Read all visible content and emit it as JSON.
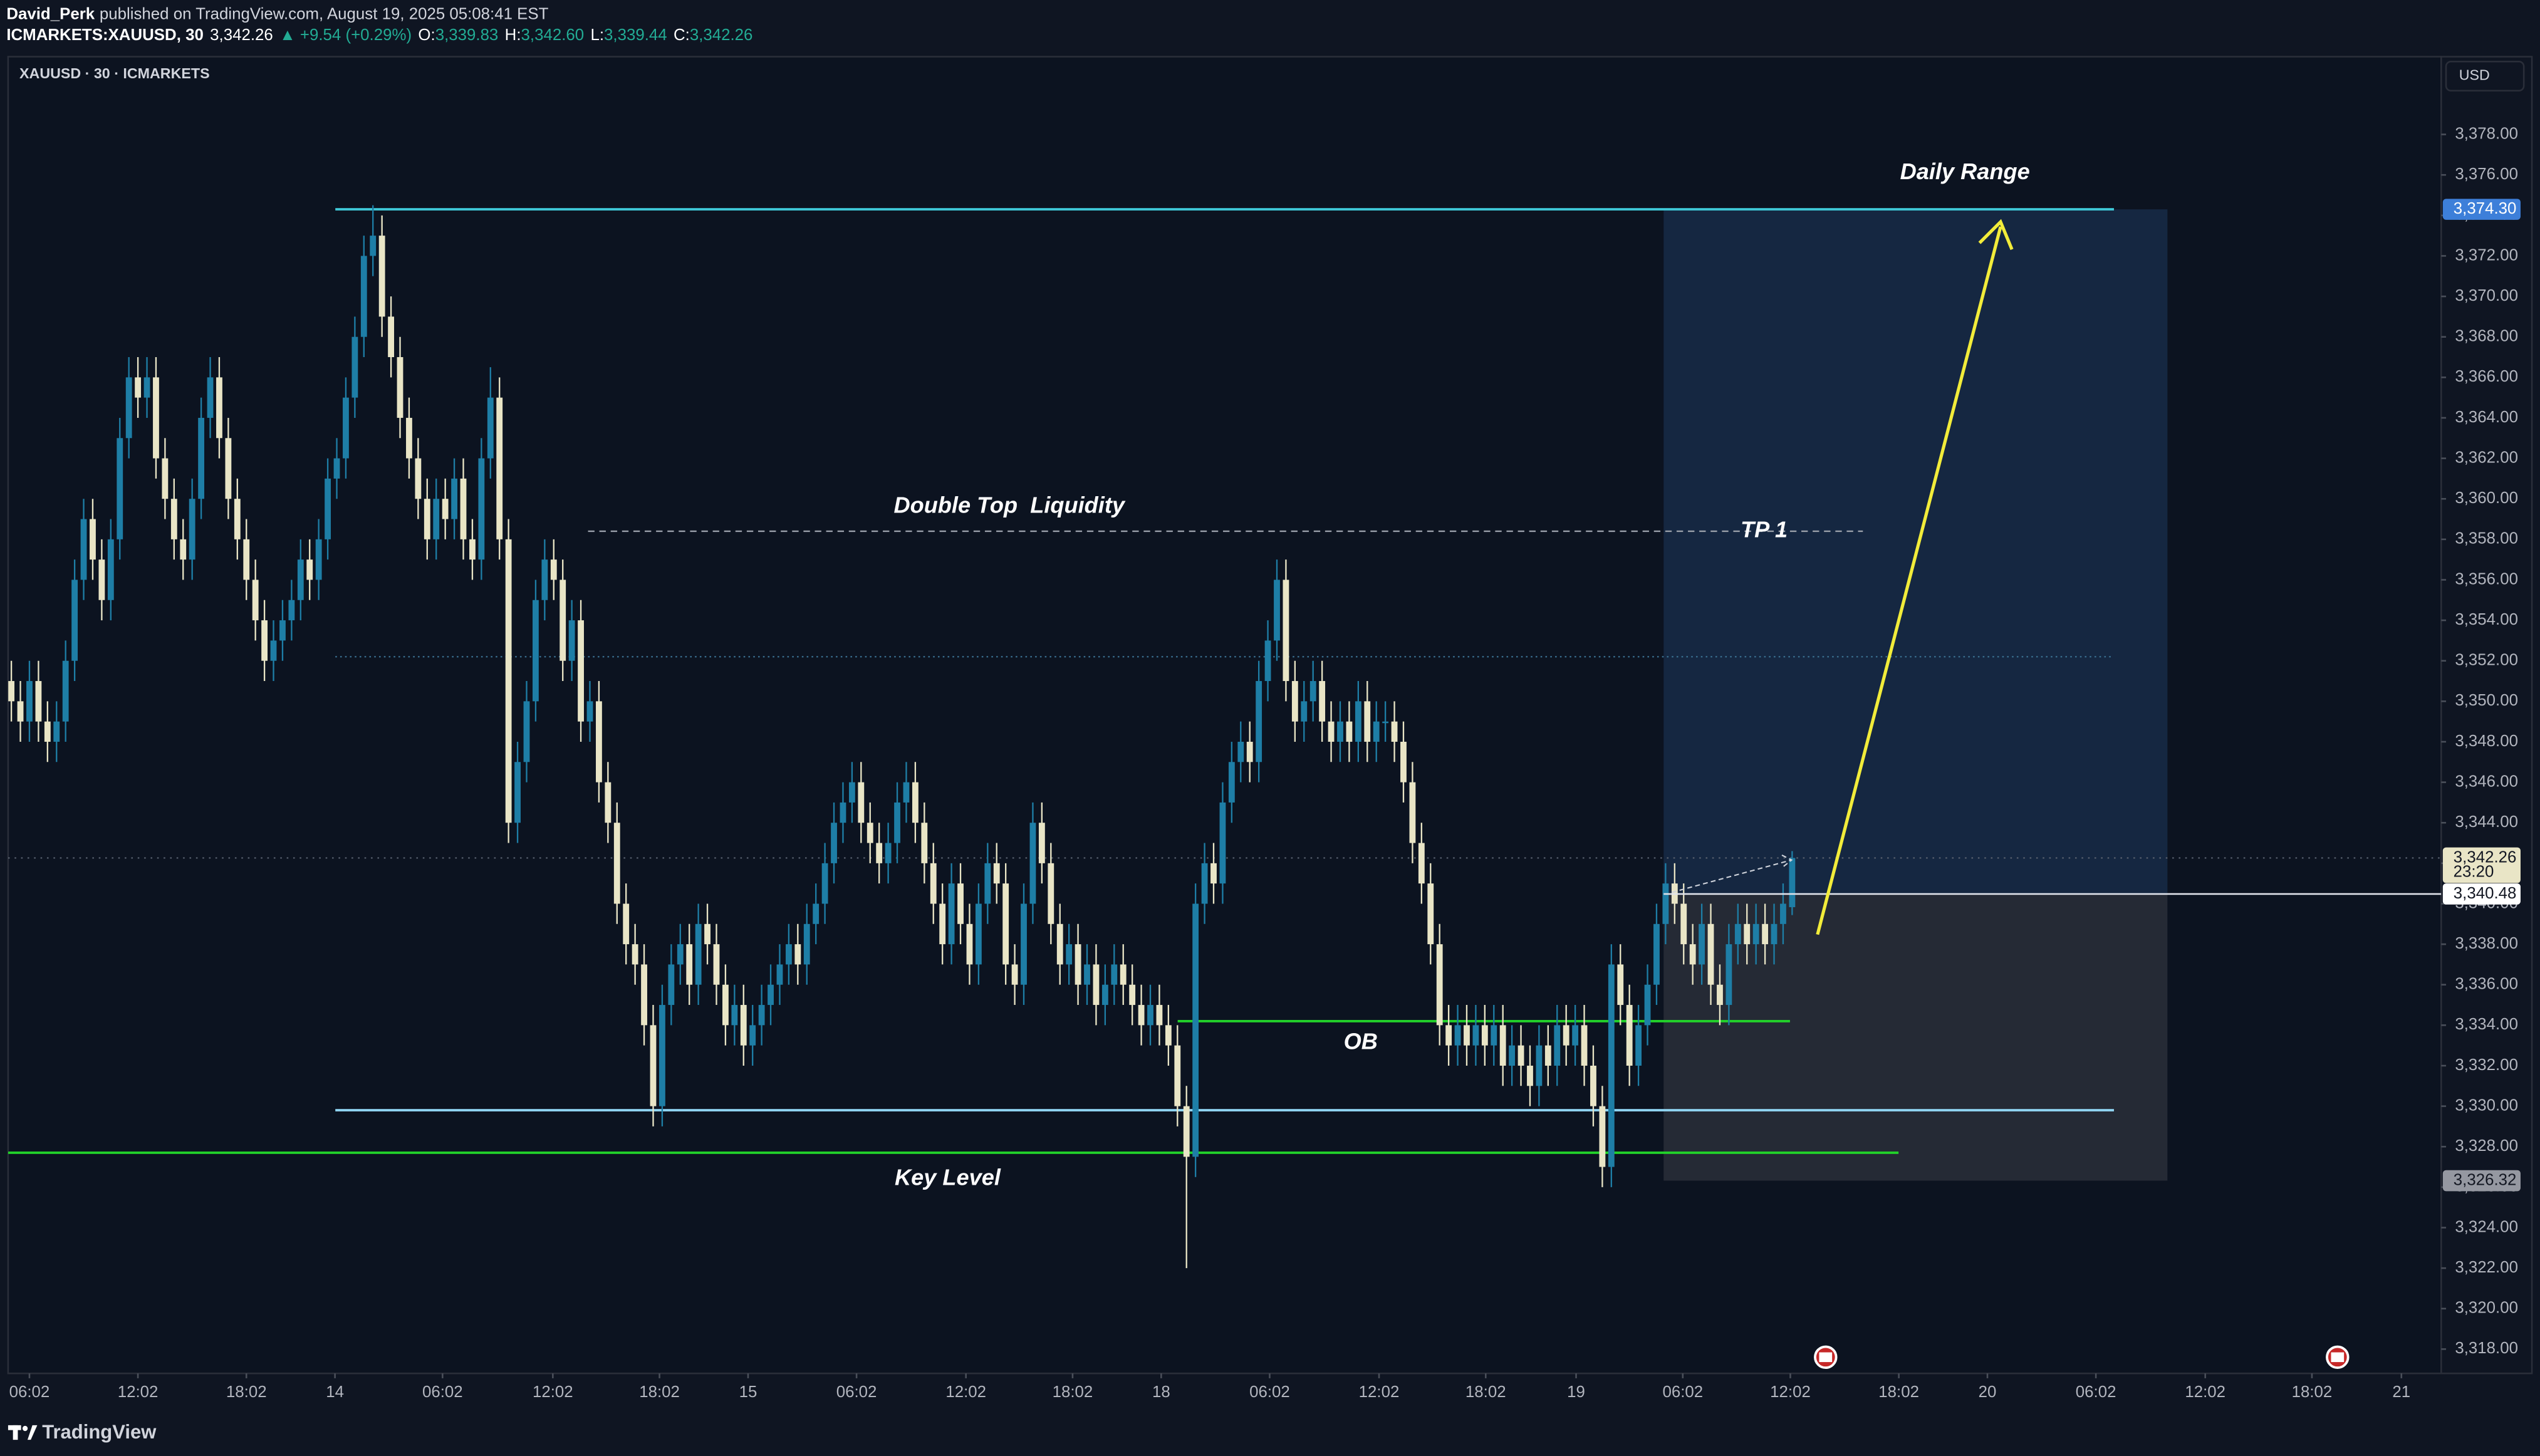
{
  "header": {
    "author": "David_Perk",
    "published": "published on TradingView.com, August 19, 2025 05:08:41 EST",
    "symbol": "ICMARKETS:XAUUSD, 30",
    "last": "3,342.26",
    "change": "▲ +9.54 (+0.29%)",
    "ohlc": [
      {
        "label": "O:",
        "value": "3,339.83"
      },
      {
        "label": "H:",
        "value": "3,342.60"
      },
      {
        "label": "L:",
        "value": "3,339.44"
      },
      {
        "label": "C:",
        "value": "3,342.26"
      }
    ]
  },
  "footer": {
    "brand": "TradingView"
  },
  "chart_data": {
    "type": "candlestick",
    "legend": "XAUUSD · 30 · ICMARKETS",
    "currency": "USD",
    "up_color": "#1e7ea6",
    "down_color": "#e9e5c6",
    "xlim": [
      -0.36,
      268.8
    ],
    "ylim": [
      3316.8,
      3381.84
    ],
    "xticks": [
      {
        "value": 2,
        "label": "06:02"
      },
      {
        "value": 14,
        "label": "12:02"
      },
      {
        "value": 26,
        "label": "18:02"
      },
      {
        "value": 35.8,
        "label": "14"
      },
      {
        "value": 47.7,
        "label": "06:02"
      },
      {
        "value": 59.9,
        "label": "12:02"
      },
      {
        "value": 71.7,
        "label": "18:02"
      },
      {
        "value": 81.5,
        "label": "15"
      },
      {
        "value": 93.5,
        "label": "06:02"
      },
      {
        "value": 105.6,
        "label": "12:02"
      },
      {
        "value": 117.4,
        "label": "18:02"
      },
      {
        "value": 127.2,
        "label": "18"
      },
      {
        "value": 139.2,
        "label": "06:02"
      },
      {
        "value": 151.3,
        "label": "12:02"
      },
      {
        "value": 163.1,
        "label": "18:02"
      },
      {
        "value": 173.1,
        "label": "19"
      },
      {
        "value": 184.9,
        "label": "06:02"
      },
      {
        "value": 196.8,
        "label": "12:02"
      },
      {
        "value": 208.8,
        "label": "18:02"
      },
      {
        "value": 218.6,
        "label": "20"
      },
      {
        "value": 230.6,
        "label": "06:02"
      },
      {
        "value": 242.7,
        "label": "12:02"
      },
      {
        "value": 254.5,
        "label": "18:02"
      },
      {
        "value": 264.4,
        "label": "21"
      }
    ],
    "yticks": [
      {
        "value": 3318,
        "label": "3,318.00"
      },
      {
        "value": 3320,
        "label": "3,320.00"
      },
      {
        "value": 3322,
        "label": "3,322.00"
      },
      {
        "value": 3324,
        "label": "3,324.00"
      },
      {
        "value": 3326,
        "label": "3,326.00"
      },
      {
        "value": 3328,
        "label": "3,328.00"
      },
      {
        "value": 3330,
        "label": "3,330.00"
      },
      {
        "value": 3332,
        "label": "3,332.00"
      },
      {
        "value": 3334,
        "label": "3,334.00"
      },
      {
        "value": 3336,
        "label": "3,336.00"
      },
      {
        "value": 3338,
        "label": "3,338.00"
      },
      {
        "value": 3340,
        "label": "3,340.00"
      },
      {
        "value": 3342,
        "label": "3,342.00"
      },
      {
        "value": 3344,
        "label": "3,344.00"
      },
      {
        "value": 3346,
        "label": "3,346.00"
      },
      {
        "value": 3348,
        "label": "3,348.00"
      },
      {
        "value": 3350,
        "label": "3,350.00"
      },
      {
        "value": 3352,
        "label": "3,352.00"
      },
      {
        "value": 3354,
        "label": "3,354.00"
      },
      {
        "value": 3356,
        "label": "3,356.00"
      },
      {
        "value": 3358,
        "label": "3,358.00"
      },
      {
        "value": 3360,
        "label": "3,360.00"
      },
      {
        "value": 3362,
        "label": "3,362.00"
      },
      {
        "value": 3364,
        "label": "3,364.00"
      },
      {
        "value": 3366,
        "label": "3,366.00"
      },
      {
        "value": 3368,
        "label": "3,368.00"
      },
      {
        "value": 3370,
        "label": "3,370.00"
      },
      {
        "value": 3372,
        "label": "3,372.00"
      },
      {
        "value": 3374,
        "label": "3,374.00"
      },
      {
        "value": 3376,
        "label": "3,376.00"
      },
      {
        "value": 3378,
        "label": "3,378.00"
      }
    ],
    "series": [
      {
        "open": [
          3351,
          3350,
          3349,
          3351,
          3349,
          3348,
          3349,
          3352,
          3356,
          3359,
          3357,
          3355,
          3358,
          3363,
          3366,
          3365,
          3366,
          3362,
          3360,
          3358,
          3357,
          3360,
          3364,
          3366,
          3363,
          3360,
          3358,
          3356,
          3354,
          3352,
          3353,
          3354,
          3355,
          3357,
          3356,
          3358,
          3361,
          3362,
          3365,
          3368,
          3372,
          3373,
          3369,
          3367,
          3364,
          3362,
          3360,
          3358,
          3360,
          3359,
          3361,
          3358,
          3357,
          3362,
          3365,
          3358,
          3344,
          3347,
          3350,
          3355,
          3357,
          3356,
          3352,
          3354,
          3349,
          3350,
          3346,
          3344,
          3340,
          3338,
          3337,
          3334,
          3330,
          3335,
          3337,
          3338,
          3336,
          3339,
          3338,
          3336,
          3334,
          3335,
          3333,
          3334,
          3335,
          3336,
          3337,
          3338,
          3337,
          3339,
          3340,
          3342,
          3344,
          3345,
          3346,
          3344,
          3343,
          3342,
          3343,
          3345,
          3346,
          3344,
          3342,
          3340,
          3338,
          3341,
          3339,
          3337,
          3340,
          3342,
          3341,
          3337,
          3336,
          3340,
          3344,
          3342,
          3339,
          3337,
          3338,
          3336,
          3337,
          3335,
          3336,
          3337,
          3336,
          3335,
          3334,
          3335,
          3334,
          3333,
          3330,
          3327.5,
          3340,
          3342,
          3341,
          3345,
          3347,
          3348,
          3347,
          3351,
          3353,
          3356,
          3351,
          3349,
          3350,
          3351,
          3349,
          3348,
          3349,
          3348,
          3350,
          3348,
          3349,
          3349,
          3348,
          3346,
          3343,
          3341,
          3338,
          3334,
          3333,
          3334,
          3333,
          3334,
          3333,
          3334,
          3332,
          3333,
          3332,
          3331,
          3333,
          3332,
          3334,
          3333,
          3334,
          3332,
          3330,
          3327,
          3337,
          3335,
          3332,
          3334,
          3336,
          3339,
          3341,
          3340,
          3338,
          3337,
          3339,
          3336,
          3335,
          3338,
          3339,
          3338,
          3339,
          3338,
          3339,
          3339.83
        ],
        "high": [
          3352,
          3351,
          3352,
          3352,
          3350,
          3350,
          3353,
          3357,
          3360,
          3360,
          3358,
          3359,
          3364,
          3367,
          3367,
          3367,
          3367,
          3363,
          3361,
          3359,
          3361,
          3365,
          3367,
          3367,
          3364,
          3361,
          3359,
          3357,
          3355,
          3354,
          3355,
          3356,
          3358,
          3358,
          3359,
          3362,
          3363,
          3366,
          3369,
          3373,
          3374.5,
          3374,
          3370,
          3368,
          3365,
          3363,
          3361,
          3361,
          3361,
          3362,
          3362,
          3359,
          3363,
          3366.5,
          3366,
          3359,
          3348,
          3351,
          3356,
          3358,
          3358,
          3357,
          3355,
          3355,
          3351,
          3351,
          3347,
          3345,
          3341,
          3339,
          3338,
          3335,
          3336,
          3338,
          3339,
          3339,
          3340,
          3340,
          3339,
          3337,
          3336,
          3336,
          3335,
          3336,
          3337,
          3338,
          3339,
          3339,
          3340,
          3341,
          3343,
          3345,
          3346,
          3347,
          3347,
          3345,
          3344,
          3344,
          3346,
          3347,
          3347,
          3345,
          3343,
          3341,
          3342,
          3342,
          3340,
          3341,
          3343,
          3343,
          3342,
          3338,
          3341,
          3345,
          3345,
          3343,
          3340,
          3339,
          3339,
          3338,
          3338,
          3337,
          3338,
          3338,
          3337,
          3336,
          3336,
          3336,
          3335,
          3334,
          3331,
          3341,
          3343,
          3343,
          3346,
          3348,
          3349,
          3349,
          3352,
          3354,
          3357,
          3357,
          3352,
          3351,
          3352,
          3352,
          3350,
          3350,
          3350,
          3351,
          3351,
          3350,
          3350,
          3350,
          3349,
          3347,
          3344,
          3342,
          3339,
          3335,
          3335,
          3335,
          3335,
          3335,
          3335,
          3335,
          3334,
          3334,
          3333,
          3334,
          3334,
          3335,
          3335,
          3335,
          3335,
          3333,
          3331,
          3338,
          3338,
          3336,
          3335,
          3337,
          3340,
          3342,
          3342,
          3341,
          3339,
          3340,
          3340,
          3337,
          3339,
          3340,
          3340,
          3340,
          3340,
          3340,
          3341,
          3342.6
        ],
        "low": [
          3349,
          3348,
          3348,
          3348,
          3347,
          3347,
          3348,
          3351,
          3355,
          3356,
          3354,
          3354,
          3357,
          3362,
          3364,
          3364,
          3361,
          3359,
          3357,
          3356,
          3356,
          3359,
          3363,
          3362,
          3359,
          3357,
          3355,
          3353,
          3351,
          3351,
          3352,
          3353,
          3354,
          3355,
          3355,
          3357,
          3360,
          3361,
          3364,
          3367,
          3371,
          3368,
          3366,
          3363,
          3361,
          3359,
          3357,
          3357,
          3358,
          3358,
          3357,
          3356,
          3356,
          3361,
          3357,
          3343,
          3343,
          3346,
          3349,
          3354,
          3355,
          3351,
          3351,
          3348,
          3348,
          3345,
          3343,
          3339,
          3337,
          3336,
          3333,
          3329,
          3329,
          3334,
          3336,
          3335,
          3335,
          3337,
          3335,
          3333,
          3333,
          3332,
          3332,
          3333,
          3334,
          3335,
          3336,
          3336,
          3336,
          3338,
          3339,
          3341,
          3343,
          3344,
          3343,
          3342,
          3341,
          3341,
          3342,
          3344,
          3343,
          3341,
          3339,
          3337,
          3337,
          3338,
          3336,
          3336,
          3339,
          3340,
          3336,
          3335,
          3335,
          3339,
          3341,
          3338,
          3336,
          3336,
          3335,
          3335,
          3334,
          3334,
          3335,
          3335,
          3334,
          3333,
          3333,
          3333,
          3332,
          3329,
          3322,
          3326.5,
          3339,
          3340,
          3340,
          3344,
          3346,
          3346,
          3346,
          3350,
          3352,
          3350,
          3348,
          3348,
          3349,
          3348,
          3347,
          3347,
          3347,
          3347,
          3347,
          3347,
          3348,
          3347,
          3345,
          3342,
          3340,
          3337,
          3333,
          3332,
          3332,
          3332,
          3332,
          3332,
          3332,
          3331,
          3331,
          3331,
          3330,
          3330,
          3331,
          3331,
          3332,
          3332,
          3331,
          3329,
          3326,
          3326,
          3334,
          3331,
          3331,
          3333,
          3335,
          3338,
          3339,
          3337,
          3336,
          3336,
          3335,
          3334,
          3334,
          3337,
          3337,
          3337,
          3337,
          3337,
          3338,
          3339.44
        ],
        "close": [
          3350,
          3349,
          3351,
          3349,
          3348,
          3349,
          3352,
          3356,
          3359,
          3357,
          3355,
          3358,
          3363,
          3366,
          3365,
          3366,
          3362,
          3360,
          3358,
          3357,
          3360,
          3364,
          3366,
          3363,
          3360,
          3358,
          3356,
          3354,
          3352,
          3353,
          3354,
          3355,
          3357,
          3356,
          3358,
          3361,
          3362,
          3365,
          3368,
          3372,
          3373,
          3369,
          3367,
          3364,
          3362,
          3360,
          3358,
          3360,
          3359,
          3361,
          3358,
          3357,
          3362,
          3365,
          3358,
          3344,
          3347,
          3350,
          3355,
          3357,
          3356,
          3352,
          3354,
          3349,
          3350,
          3346,
          3344,
          3340,
          3338,
          3337,
          3334,
          3330,
          3335,
          3337,
          3338,
          3336,
          3339,
          3338,
          3336,
          3334,
          3335,
          3333,
          3334,
          3335,
          3336,
          3337,
          3338,
          3337,
          3339,
          3340,
          3342,
          3344,
          3345,
          3346,
          3344,
          3343,
          3342,
          3343,
          3345,
          3346,
          3344,
          3342,
          3340,
          3338,
          3341,
          3339,
          3337,
          3340,
          3342,
          3341,
          3337,
          3336,
          3340,
          3344,
          3342,
          3339,
          3337,
          3338,
          3336,
          3337,
          3335,
          3336,
          3337,
          3336,
          3335,
          3334,
          3335,
          3334,
          3333,
          3330,
          3327.5,
          3340,
          3342,
          3341,
          3345,
          3347,
          3348,
          3347,
          3351,
          3353,
          3356,
          3351,
          3349,
          3350,
          3351,
          3349,
          3348,
          3349,
          3348,
          3350,
          3348,
          3349,
          3349,
          3348,
          3346,
          3343,
          3341,
          3338,
          3334,
          3333,
          3334,
          3333,
          3334,
          3333,
          3334,
          3332,
          3333,
          3332,
          3331,
          3333,
          3332,
          3334,
          3333,
          3334,
          3332,
          3330,
          3327,
          3337,
          3335,
          3332,
          3334,
          3336,
          3339,
          3341,
          3340,
          3338,
          3337,
          3339,
          3336,
          3335,
          3338,
          3339,
          3338,
          3339,
          3338,
          3339,
          3340,
          3342.26
        ]
      }
    ],
    "levels": [
      {
        "value": 3374.3,
        "color": "#3fc7d6",
        "style": "solid"
      },
      {
        "value": 3329.8,
        "color": "#8fd3f0",
        "style": "solid"
      },
      {
        "value": 3327.7,
        "color": "#22d12a",
        "style": "solid"
      },
      {
        "value": 3334.2,
        "color": "#22d12a",
        "style": "solid"
      },
      {
        "value": 3358.4,
        "color": "#9aa0aa",
        "style": "dashed"
      },
      {
        "value": 3352.2,
        "color": "#3a6f8f",
        "style": "dotted"
      }
    ],
    "current": {
      "value": 3342.26,
      "label": "3,342.26",
      "countdown": "23:20"
    },
    "position": {
      "target": {
        "value": 3374.3,
        "label": "3,374.30"
      },
      "entry": {
        "value": 3340.48,
        "label": "3,340.48"
      },
      "stop": {
        "value": 3326.32,
        "label": "3,326.32"
      }
    },
    "annotations": [
      "Daily Range",
      "Double Top  Liquidity",
      "TP 1",
      "OB",
      "Key Level"
    ]
  }
}
